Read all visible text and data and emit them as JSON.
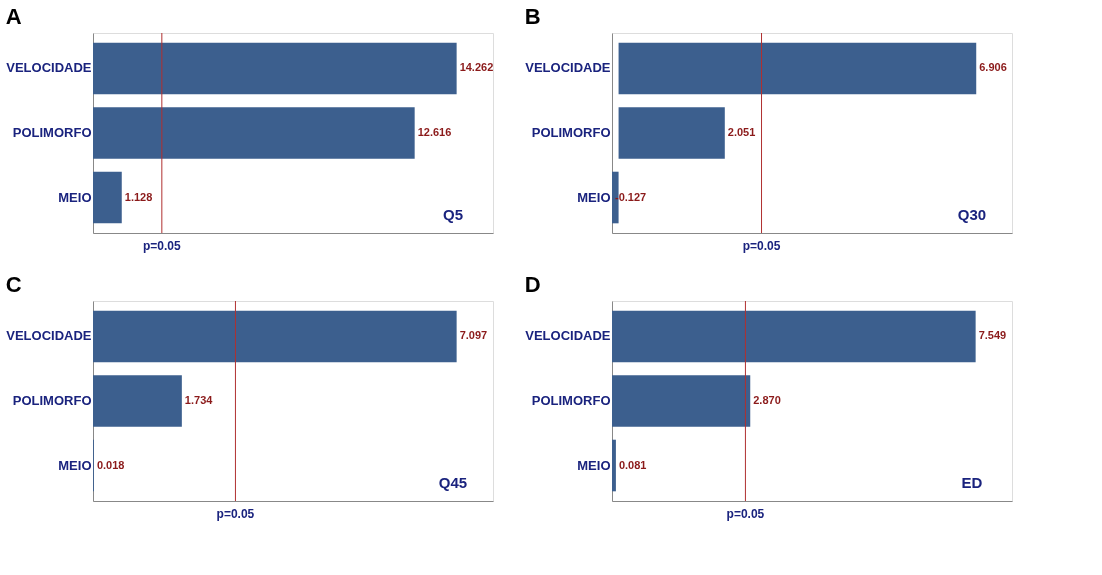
{
  "chart_data": [
    {
      "type": "bar",
      "orientation": "horizontal",
      "title": "A",
      "categories": [
        "VELOCIDADE",
        "POLIMORFO",
        "MEIO"
      ],
      "values": [
        14.262,
        12.616,
        1.128
      ],
      "value_labels": [
        "14.262",
        "12.616",
        "1.128"
      ],
      "color": "#3c5f8e",
      "tick_labels": "y",
      "grid": false,
      "ref_lines": [
        {
          "axis": "x",
          "value": 2.7,
          "color": "#b03030"
        }
      ],
      "annotations": [
        "p=0.05",
        "Q5"
      ]
    },
    {
      "type": "bar",
      "orientation": "horizontal",
      "title": "B",
      "categories": [
        "VELOCIDADE",
        "POLIMORFO",
        "MEIO"
      ],
      "values": [
        6.906,
        2.051,
        -0.127
      ],
      "value_labels": [
        "6.906",
        "2.051",
        "-0.127"
      ],
      "color": "#3c5f8e",
      "tick_labels": "y",
      "grid": false,
      "ref_lines": [
        {
          "axis": "x",
          "value": 2.76,
          "color": "#b03030"
        }
      ],
      "annotations": [
        "p=0.05",
        "Q30"
      ]
    },
    {
      "type": "bar",
      "orientation": "horizontal",
      "title": "C",
      "categories": [
        "VELOCIDADE",
        "POLIMORFO",
        "MEIO"
      ],
      "values": [
        7.097,
        1.734,
        0.018
      ],
      "value_labels": [
        "7.097",
        "1.734",
        "0.018"
      ],
      "color": "#3c5f8e",
      "tick_labels": "y",
      "grid": false,
      "ref_lines": [
        {
          "axis": "x",
          "value": 2.78,
          "color": "#b03030"
        }
      ],
      "annotations": [
        "p=0.05",
        "Q45"
      ]
    },
    {
      "type": "bar",
      "orientation": "horizontal",
      "title": "D",
      "categories": [
        "VELOCIDADE",
        "POLIMORFO",
        "MEIO"
      ],
      "values": [
        7.549,
        2.87,
        0.081
      ],
      "value_labels": [
        "7.549",
        "2.870",
        "0.081"
      ],
      "color": "#3c5f8e",
      "tick_labels": "y",
      "grid": false,
      "ref_lines": [
        {
          "axis": "x",
          "value": 2.77,
          "color": "#b03030"
        }
      ],
      "annotations": [
        "p=0.05",
        "ED"
      ]
    }
  ]
}
